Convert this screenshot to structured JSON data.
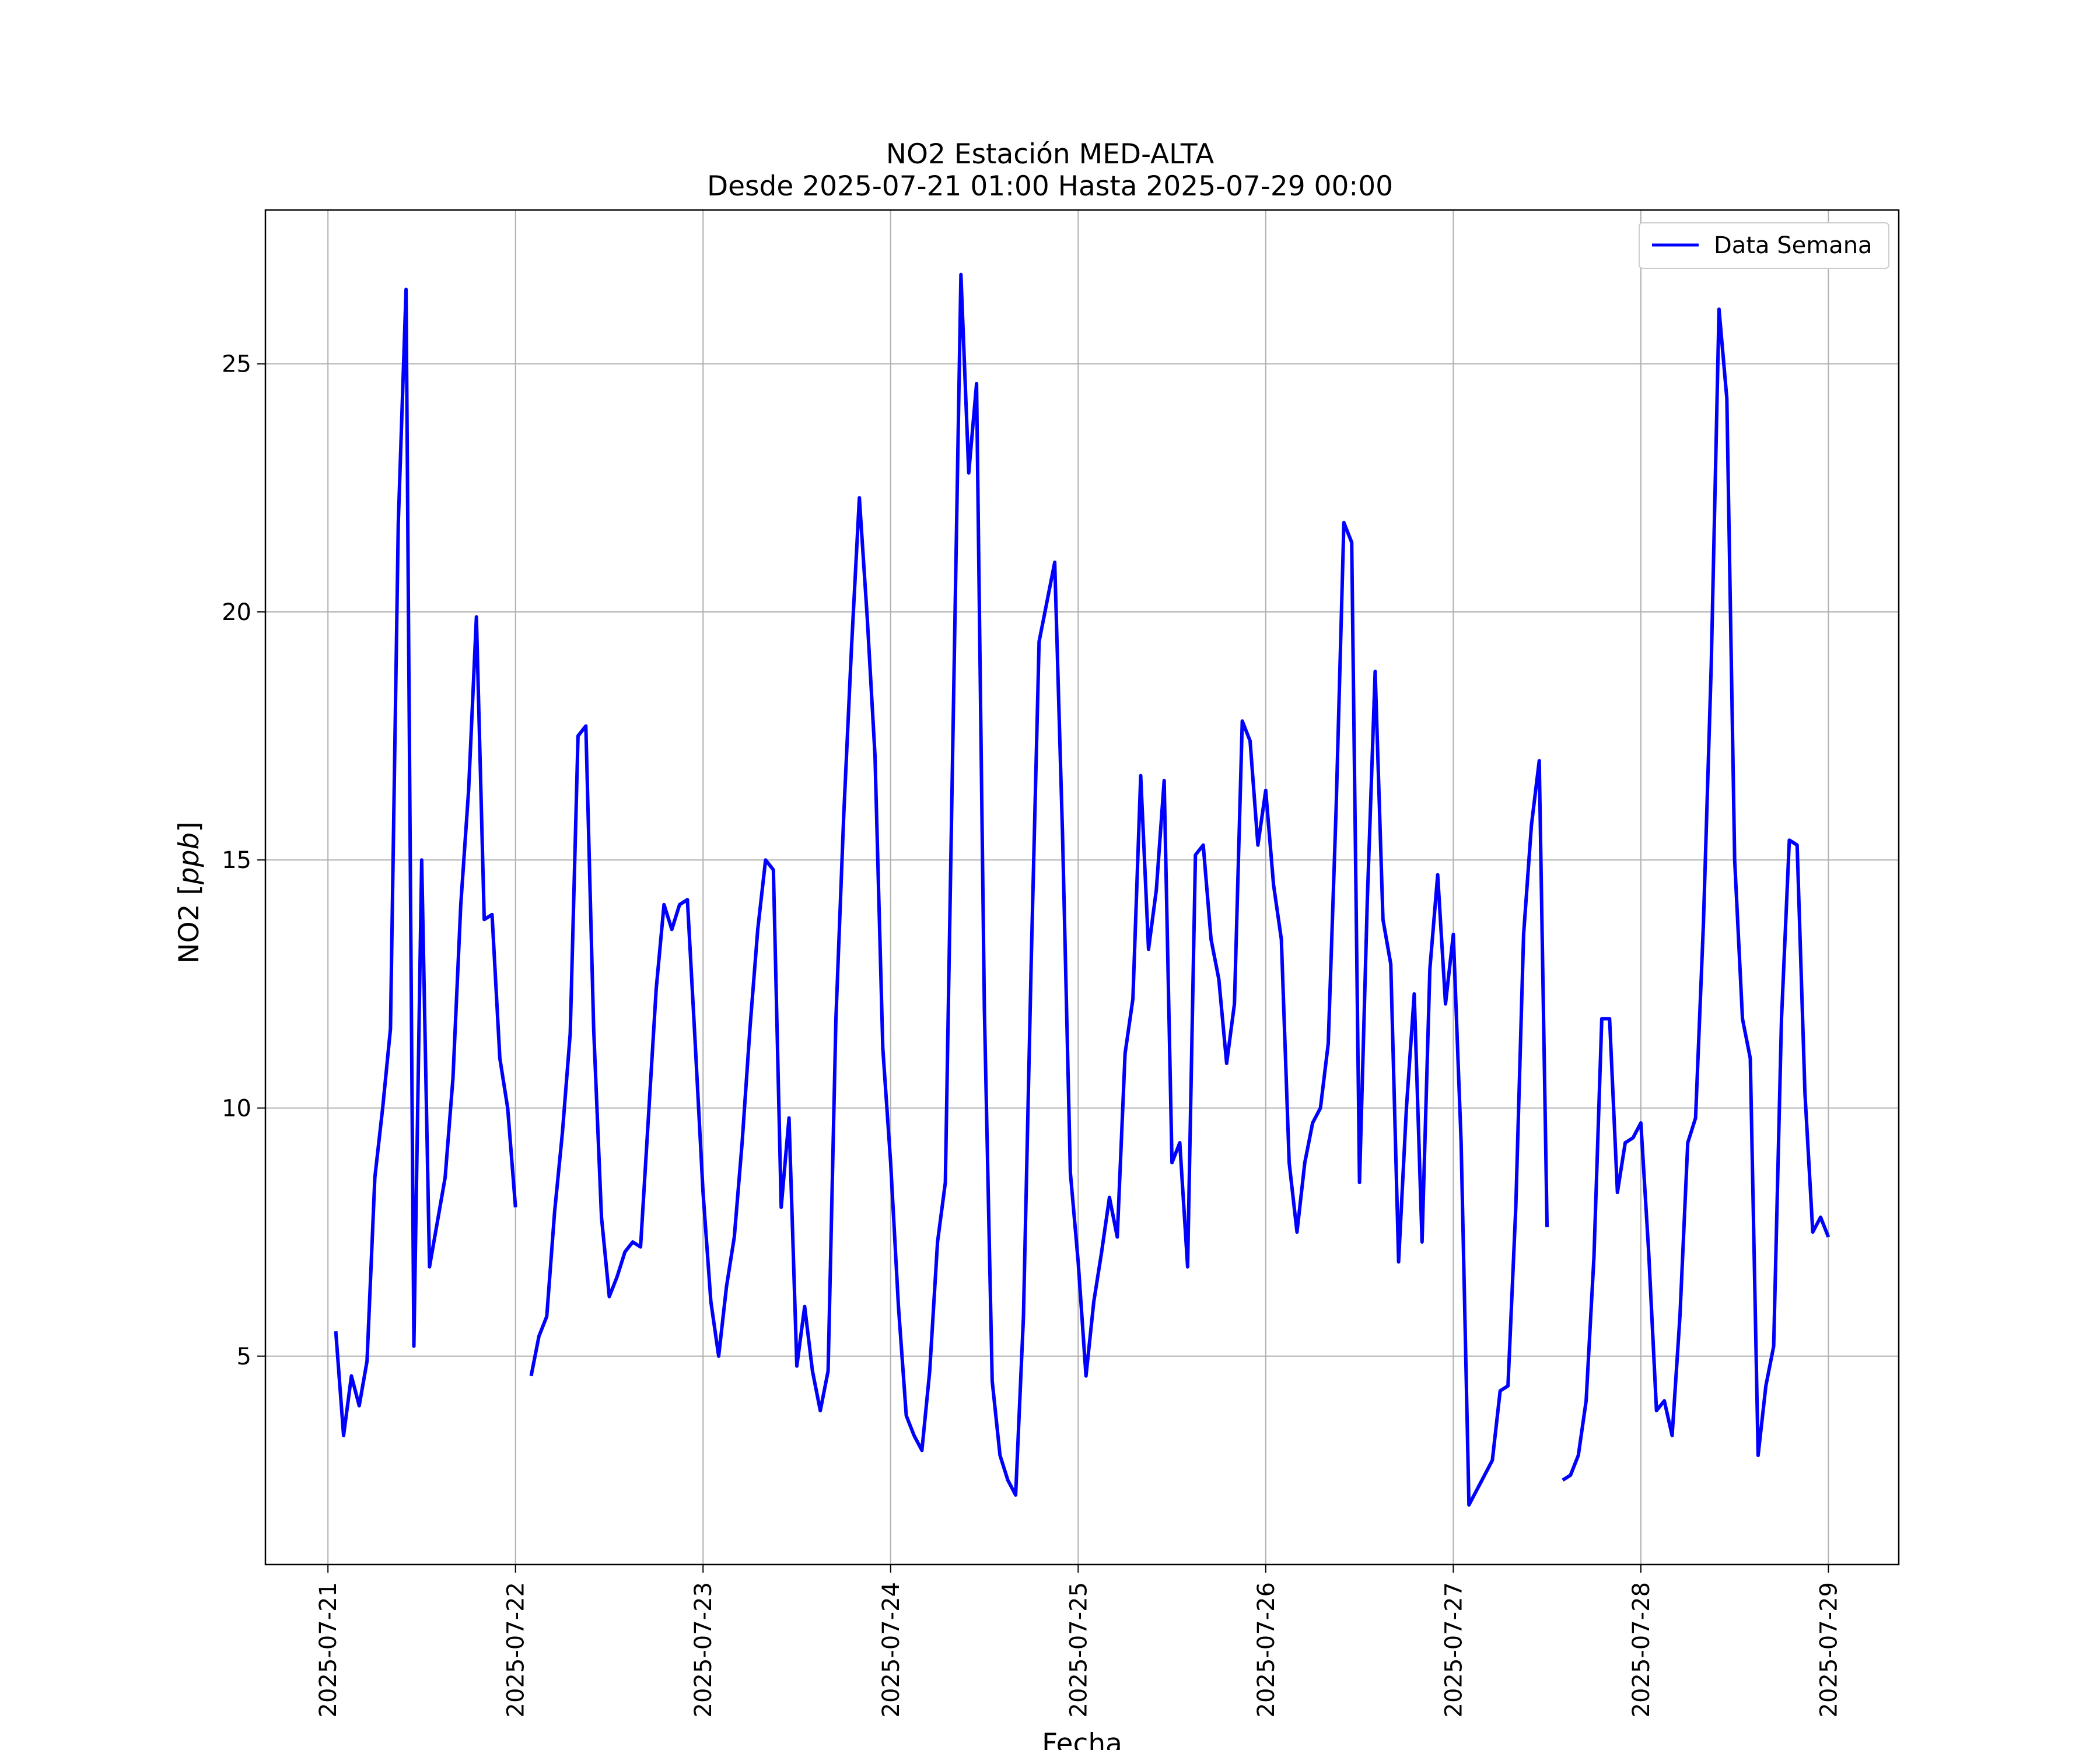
{
  "chart_data": {
    "type": "line",
    "title": [
      "NO2 Estación MED-ALTA",
      "Desde 2025-07-21 01:00 Hasta 2025-07-29 00:00"
    ],
    "xlabel": "Fecha",
    "ylabel_prefix": "NO2 [",
    "ylabel_unit": "ppb",
    "ylabel_suffix": "]",
    "xlim": [
      "2025-07-20 16:00",
      "2025-07-29 09:00"
    ],
    "ylim": [
      0.8,
      28.1
    ],
    "x_ticks": [
      "2025-07-21",
      "2025-07-22",
      "2025-07-23",
      "2025-07-24",
      "2025-07-25",
      "2025-07-26",
      "2025-07-27",
      "2025-07-28",
      "2025-07-29"
    ],
    "y_ticks": [
      5,
      10,
      15,
      20,
      25
    ],
    "grid": true,
    "legend_position": "upper right",
    "series": [
      {
        "name": "Data Semana",
        "color": "#0000ff",
        "start": "2025-07-21 01:00",
        "step_hours": 1,
        "values": [
          5.5,
          3.4,
          4.6,
          4.0,
          4.9,
          8.6,
          10.0,
          11.6,
          21.8,
          26.5,
          5.2,
          15.0,
          6.8,
          7.7,
          8.6,
          10.6,
          14.1,
          16.4,
          19.9,
          13.8,
          13.9,
          11.0,
          10.0,
          8.0,
          null,
          4.6,
          5.4,
          5.8,
          7.9,
          9.5,
          11.5,
          17.5,
          17.7,
          11.6,
          7.8,
          6.2,
          6.6,
          7.1,
          7.3,
          7.2,
          9.8,
          12.4,
          14.1,
          13.6,
          14.1,
          14.2,
          11.3,
          8.3,
          6.1,
          5.0,
          6.4,
          7.4,
          9.3,
          11.6,
          13.6,
          15.0,
          14.8,
          8.0,
          9.8,
          4.8,
          6.0,
          4.7,
          3.9,
          4.7,
          11.8,
          15.9,
          19.3,
          22.3,
          19.9,
          17.1,
          11.2,
          8.9,
          6.0,
          3.8,
          3.4,
          3.1,
          4.7,
          7.3,
          8.5,
          17.7,
          26.8,
          22.8,
          24.6,
          12.0,
          4.5,
          3.0,
          2.5,
          2.2,
          5.8,
          13.0,
          19.4,
          20.2,
          21.0,
          15.5,
          8.7,
          6.9,
          4.6,
          6.1,
          7.1,
          8.2,
          7.4,
          11.1,
          12.2,
          16.7,
          13.2,
          14.4,
          16.6,
          8.9,
          9.3,
          6.8,
          15.1,
          15.3,
          13.4,
          12.6,
          10.9,
          12.1,
          17.8,
          17.4,
          15.3,
          16.4,
          14.5,
          13.4,
          8.9,
          7.5,
          8.9,
          9.7,
          10.0,
          11.3,
          16.0,
          21.8,
          21.4,
          8.5,
          14.2,
          18.8,
          13.8,
          12.9,
          6.9,
          10.0,
          12.3,
          7.3,
          12.8,
          14.7,
          12.1,
          13.5,
          9.3,
          2.0,
          2.3,
          2.6,
          2.9,
          4.3,
          4.4,
          8.0,
          13.5,
          15.7,
          17.0,
          7.6,
          null,
          2.5,
          2.6,
          3.0,
          4.1,
          7.0,
          11.8,
          11.8,
          8.3,
          9.3,
          9.4,
          9.7,
          7.1,
          3.9,
          4.1,
          3.4,
          5.8,
          9.3,
          9.8,
          13.7,
          18.9,
          26.1,
          24.3,
          15.0,
          11.8,
          11.0,
          3.0,
          4.4,
          5.2,
          11.8,
          15.4,
          15.3,
          10.3,
          7.5,
          7.8,
          7.4
        ]
      }
    ]
  }
}
